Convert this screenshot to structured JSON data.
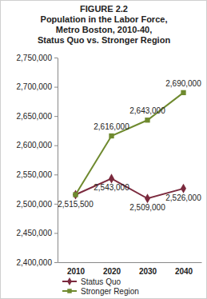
{
  "chart_data": {
    "type": "line",
    "title": "FIGURE 2.2",
    "subtitle": [
      "Population in the Labor Force,",
      "Metro Boston, 2010-40,",
      "Status Quo vs. Stronger Region"
    ],
    "categories": [
      "2010",
      "2020",
      "2030",
      "2040"
    ],
    "series": [
      {
        "name": "Status Quo",
        "color": "#7b2a3e",
        "marker": "diamond",
        "values": [
          2515500,
          2543000,
          2509000,
          2526000
        ],
        "value_labels": [
          "2,515,500",
          "2,543,000",
          "2,509,000",
          "2,526,000"
        ]
      },
      {
        "name": "Stronger Region",
        "color": "#6f8a2f",
        "marker": "square",
        "values": [
          2515500,
          2616000,
          2643000,
          2690000
        ],
        "value_labels": [
          null,
          "2,616,000",
          "2,643,000",
          "2,690,000"
        ]
      }
    ],
    "ylim": [
      2400000,
      2750000
    ],
    "yticks": [
      {
        "value": 2400000,
        "label": "2,400,000"
      },
      {
        "value": 2450000,
        "label": "2,450,000"
      },
      {
        "value": 2500000,
        "label": "2,500,000"
      },
      {
        "value": 2550000,
        "label": "2,550,000"
      },
      {
        "value": 2600000,
        "label": "2,600,000"
      },
      {
        "value": 2650000,
        "label": "2,650,000"
      },
      {
        "value": 2700000,
        "label": "2,700,000"
      },
      {
        "value": 2750000,
        "label": "2,750,000"
      }
    ],
    "grid": false,
    "data_labels": true,
    "legend": "bottom"
  }
}
